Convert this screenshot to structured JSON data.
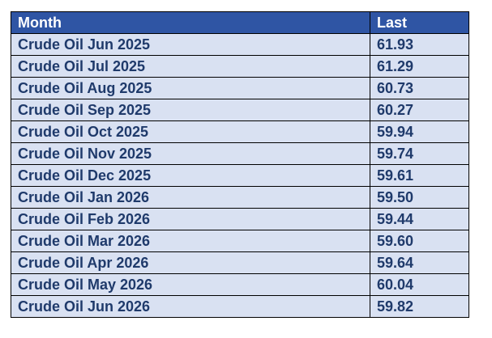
{
  "table": {
    "headers": {
      "month": "Month",
      "last": "Last"
    },
    "rows": [
      {
        "month": "Crude Oil Jun 2025",
        "last": "61.93"
      },
      {
        "month": "Crude Oil Jul 2025",
        "last": "61.29"
      },
      {
        "month": "Crude Oil Aug 2025",
        "last": "60.73"
      },
      {
        "month": "Crude Oil Sep 2025",
        "last": "60.27"
      },
      {
        "month": "Crude Oil Oct 2025",
        "last": "59.94"
      },
      {
        "month": "Crude Oil Nov 2025",
        "last": "59.74"
      },
      {
        "month": "Crude Oil Dec 2025",
        "last": "59.61"
      },
      {
        "month": "Crude Oil Jan 2026",
        "last": "59.50"
      },
      {
        "month": "Crude Oil Feb 2026",
        "last": "59.44"
      },
      {
        "month": "Crude Oil Mar 2026",
        "last": "59.60"
      },
      {
        "month": "Crude Oil Apr 2026",
        "last": "59.64"
      },
      {
        "month": "Crude Oil May 2026",
        "last": "60.04"
      },
      {
        "month": "Crude Oil Jun 2026",
        "last": "59.82"
      }
    ]
  },
  "colors": {
    "header_bg": "#2f55a4",
    "header_text": "#ffffff",
    "row_bg": "#d9e1f2",
    "row_text": "#1f3a6b"
  }
}
